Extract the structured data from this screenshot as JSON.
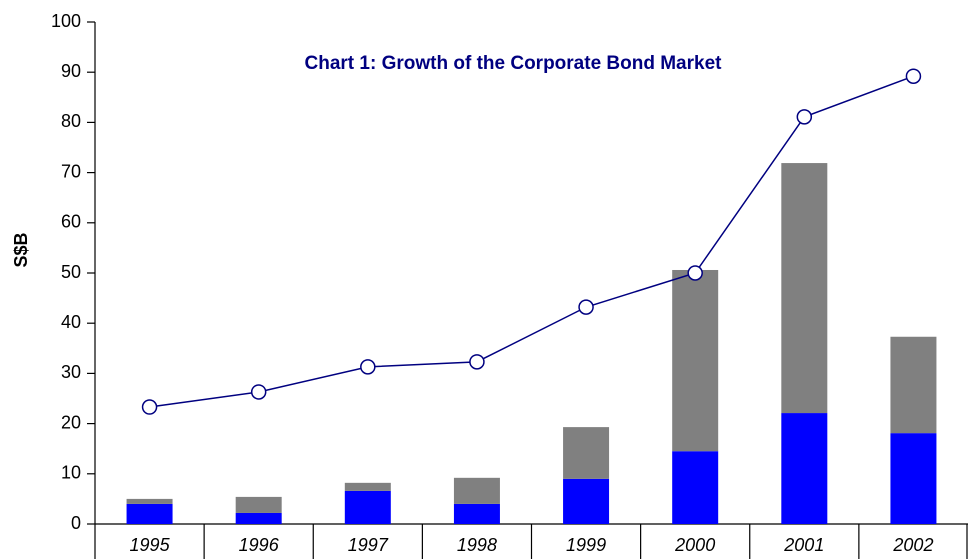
{
  "chart_data": {
    "type": "bar-line",
    "title": "Chart 1: Growth of the Corporate Bond Market",
    "ylabel": "S$B",
    "categories": [
      "1995",
      "1996",
      "1997",
      "1998",
      "1999",
      "2000",
      "2001",
      "2002"
    ],
    "series": [
      {
        "type": "bar",
        "color": "#0000ff",
        "values": [
          4.0,
          2.2,
          6.6,
          4.0,
          9.0,
          14.5,
          22.1,
          18.1
        ]
      },
      {
        "type": "bar",
        "color": "#808080",
        "values": [
          1.0,
          3.2,
          1.6,
          5.2,
          10.3,
          36.1,
          49.8,
          19.2
        ]
      },
      {
        "type": "line",
        "color": "#000080",
        "values": [
          23.3,
          26.3,
          31.3,
          32.3,
          43.2,
          50.0,
          81.1,
          89.2
        ]
      }
    ],
    "ylim": [
      0,
      100
    ],
    "yticks": [
      0,
      10,
      20,
      30,
      40,
      50,
      60,
      70,
      80,
      90,
      100
    ]
  }
}
